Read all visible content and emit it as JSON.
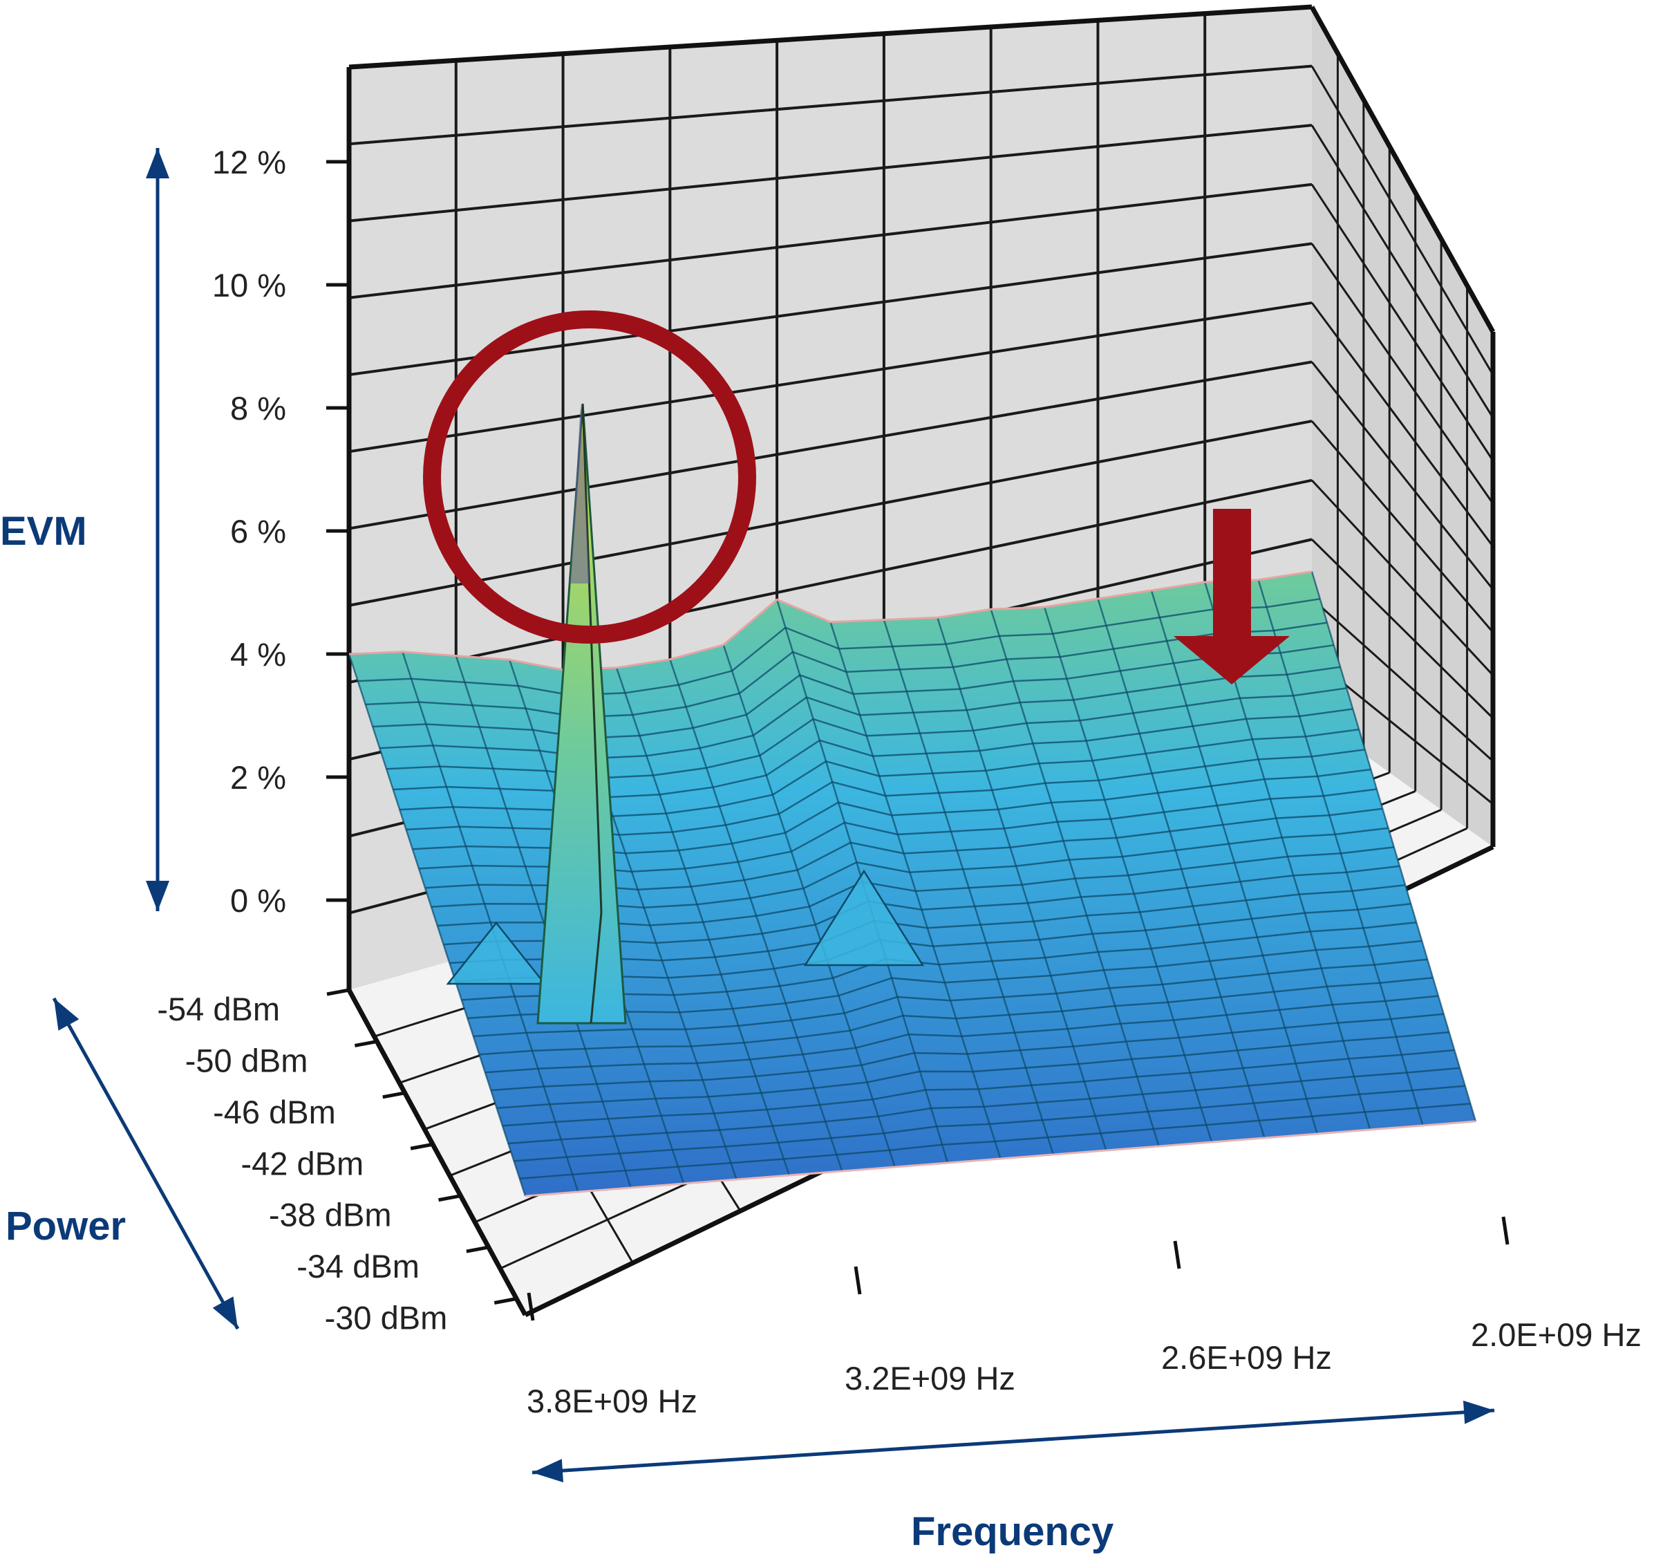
{
  "colors": {
    "axis_arrow": "#0b3a78",
    "axis_title": "#0b3a78",
    "highlight": "#9e1018",
    "wall": "#dcdcdc",
    "floor": "#f3f3f3",
    "grid": "#1a1a1a",
    "surface_low": "#2f6fc8",
    "surface_mid": "#3cb6e0",
    "surface_high": "#6fcb9b",
    "peak": "#d7e034"
  },
  "annotations": {
    "peak_marker": "red-circle",
    "level_marker": "red-down-arrow"
  },
  "chart_data": {
    "type": "surface3d",
    "z_axis": {
      "title": "EVM",
      "ticks": [
        "12 %",
        "10 %",
        "8 %",
        "6 %",
        "4 %",
        "2 %",
        "0 %"
      ],
      "range": [
        0,
        12
      ]
    },
    "y_axis": {
      "title": "Power",
      "ticks": [
        "-54 dBm",
        "-50 dBm",
        "-46 dBm",
        "-42 dBm",
        "-38 dBm",
        "-34 dBm",
        "-30 dBm"
      ]
    },
    "x_axis": {
      "title": "Frequency",
      "ticks": [
        "3.8E+09 Hz",
        "3.2E+09 Hz",
        "2.6E+09 Hz",
        "2.0E+09 Hz"
      ]
    },
    "back_edge_evm": [
      4.0,
      3.9,
      3.7,
      3.5,
      3.2,
      3.1,
      3.1,
      3.2,
      3.8,
      3.3,
      3.2,
      3.1,
      3.1,
      3.0,
      3.0,
      3.0,
      3.0,
      2.9,
      2.9
    ],
    "peak": {
      "frequency": "3.6E+09 Hz",
      "power": "-54 dBm",
      "evm": 8.0
    }
  }
}
